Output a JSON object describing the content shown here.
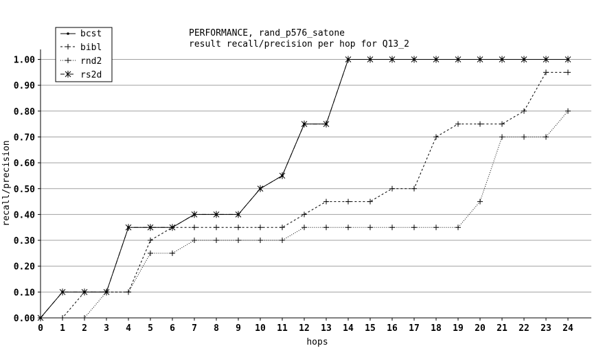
{
  "chart_data": {
    "type": "line",
    "title": "PERFORMANCE, rand_p576_satone",
    "subtitle": "result recall/precision per hop for Q13_2",
    "xlabel": "hops",
    "ylabel": "recall/precision",
    "xlim": [
      0,
      24
    ],
    "ylim": [
      0,
      1.05
    ],
    "xticks": [
      0,
      1,
      2,
      3,
      4,
      5,
      6,
      7,
      8,
      9,
      10,
      11,
      12,
      13,
      14,
      15,
      16,
      17,
      18,
      19,
      20,
      21,
      22,
      23,
      24
    ],
    "yticks": [
      "0.00",
      "0.10",
      "0.20",
      "0.30",
      "0.40",
      "0.50",
      "0.60",
      "0.70",
      "0.80",
      "0.90",
      "1.00"
    ],
    "grid": "horizontal",
    "legend_position": "top-left",
    "x": [
      0,
      1,
      2,
      3,
      4,
      5,
      6,
      7,
      8,
      9,
      10,
      11,
      12,
      13,
      14,
      15,
      16,
      17,
      18,
      19,
      20,
      21,
      22,
      23,
      24
    ],
    "series": [
      {
        "name": "bcst",
        "marker": "dot",
        "dash": "solid",
        "values": [
          0,
          0.1,
          0.1,
          0.1,
          0.35,
          0.35,
          0.35,
          0.4,
          0.4,
          0.4,
          0.5,
          0.55,
          0.75,
          0.75,
          1.0,
          1.0,
          1.0,
          1.0,
          1.0,
          1.0,
          1.0,
          1.0,
          1.0,
          1.0,
          1.0
        ]
      },
      {
        "name": "bibl",
        "marker": "plus",
        "dash": "dashed",
        "values": [
          0,
          0,
          0.1,
          0.1,
          0.1,
          0.3,
          0.35,
          0.35,
          0.35,
          0.35,
          0.35,
          0.35,
          0.4,
          0.45,
          0.45,
          0.45,
          0.5,
          0.5,
          0.7,
          0.75,
          0.75,
          0.75,
          0.8,
          0.95,
          0.95
        ]
      },
      {
        "name": "rnd2",
        "marker": "plus",
        "dash": "dotted",
        "values": [
          0,
          0,
          0,
          0.1,
          0.1,
          0.25,
          0.25,
          0.3,
          0.3,
          0.3,
          0.3,
          0.3,
          0.35,
          0.35,
          0.35,
          0.35,
          0.35,
          0.35,
          0.35,
          0.35,
          0.45,
          0.7,
          0.7,
          0.7,
          0.8
        ]
      },
      {
        "name": "rs2d",
        "marker": "star",
        "dash": "dashdot",
        "values": [
          0,
          0.1,
          0.1,
          0.1,
          0.35,
          0.35,
          0.35,
          0.4,
          0.4,
          0.4,
          0.5,
          0.55,
          0.75,
          0.75,
          1.0,
          1.0,
          1.0,
          1.0,
          1.0,
          1.0,
          1.0,
          1.0,
          1.0,
          1.0,
          1.0
        ]
      }
    ],
    "colors": {
      "line": "#000000",
      "grid": "#a0a0a0",
      "background": "#ffffff"
    }
  }
}
